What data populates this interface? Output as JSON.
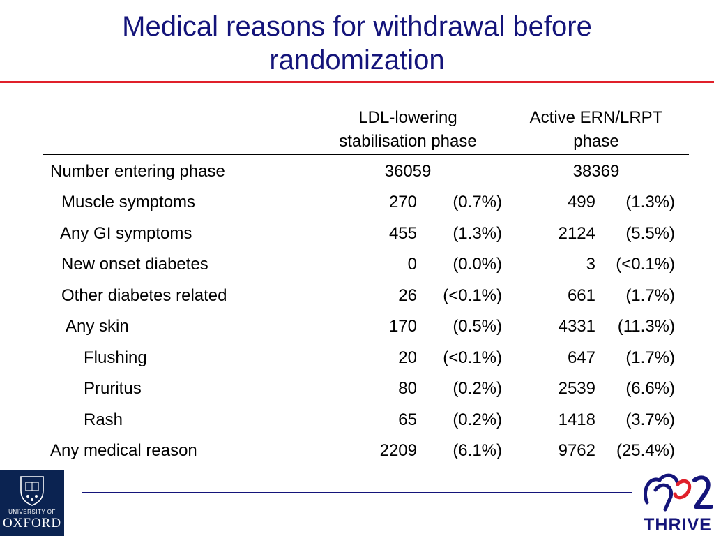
{
  "title": "Medical reasons for withdrawal before randomization",
  "columns": [
    {
      "line1": "LDL-lowering",
      "line2": "stabilisation phase"
    },
    {
      "line1": "Active ERN/LRPT",
      "line2": "phase"
    }
  ],
  "entering": {
    "label": "Number entering phase",
    "col1": "36059",
    "col2": "38369"
  },
  "rows": [
    {
      "label": "Muscle symptoms",
      "n1": "270",
      "p1": "(0.7%)",
      "n2": "499",
      "p2": "(1.3%)"
    },
    {
      "label": "Any GI symptoms",
      "n1": "455",
      "p1": "(1.3%)",
      "n2": "2124",
      "p2": "(5.5%)"
    },
    {
      "label": "New onset diabetes",
      "n1": "0",
      "p1": "(0.0%)",
      "n2": "3",
      "p2": "(<0.1%)"
    },
    {
      "label": "Other diabetes related",
      "n1": "26",
      "p1": "(<0.1%)",
      "n2": "661",
      "p2": "(1.7%)"
    },
    {
      "label": "Any skin",
      "n1": "170",
      "p1": "(0.5%)",
      "n2": "4331",
      "p2": "(11.3%)"
    },
    {
      "label": "Flushing",
      "n1": "20",
      "p1": "(<0.1%)",
      "n2": "647",
      "p2": "(1.7%)"
    },
    {
      "label": "Pruritus",
      "n1": "80",
      "p1": "(0.2%)",
      "n2": "2539",
      "p2": "(6.6%)"
    },
    {
      "label": "Rash",
      "n1": "65",
      "p1": "(0.2%)",
      "n2": "1418",
      "p2": "(3.7%)"
    },
    {
      "label": "Any medical reason",
      "n1": "2209",
      "p1": "(6.1%)",
      "n2": "9762",
      "p2": "(25.4%)"
    }
  ],
  "logos": {
    "oxford_line1": "UNIVERSITY OF",
    "oxford_line2": "OXFORD",
    "thrive_script": "hps2",
    "thrive_word": "THRIVE"
  },
  "colors": {
    "title": "#14147a",
    "accent_rule": "#e0202a",
    "oxford_blue": "#0b2351"
  }
}
